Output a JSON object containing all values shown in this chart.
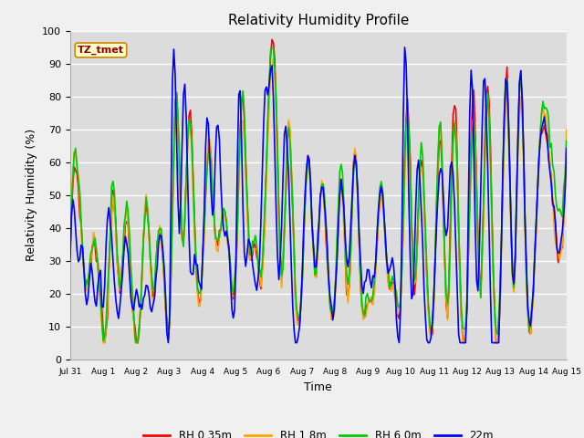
{
  "title": "Relativity Humidity Profile",
  "xlabel": "Time",
  "ylabel": "Relativity Humidity (%)",
  "ylim": [
    0,
    100
  ],
  "yticks": [
    0,
    10,
    20,
    30,
    40,
    50,
    60,
    70,
    80,
    90,
    100
  ],
  "xtick_labels": [
    "Jul 31",
    "Aug 1",
    "Aug 2",
    "Aug 3",
    "Aug 4",
    "Aug 5",
    "Aug 6",
    "Aug 7",
    "Aug 8",
    "Aug 9",
    "Aug 10",
    "Aug 11",
    "Aug 12",
    "Aug 13",
    "Aug 14",
    "Aug 15"
  ],
  "annotation": "TZ_tmet",
  "plot_bg_color": "#dcdcdc",
  "fig_bg_color": "#f0f0f0",
  "line_colors": [
    "#ff0000",
    "#ffa500",
    "#00cc00",
    "#0000ff"
  ],
  "line_labels": [
    "RH 0.35m",
    "RH 1.8m",
    "RH 6.0m",
    "22m"
  ],
  "line_width": 1.2,
  "grid_color": "#ffffff",
  "seed": 7
}
